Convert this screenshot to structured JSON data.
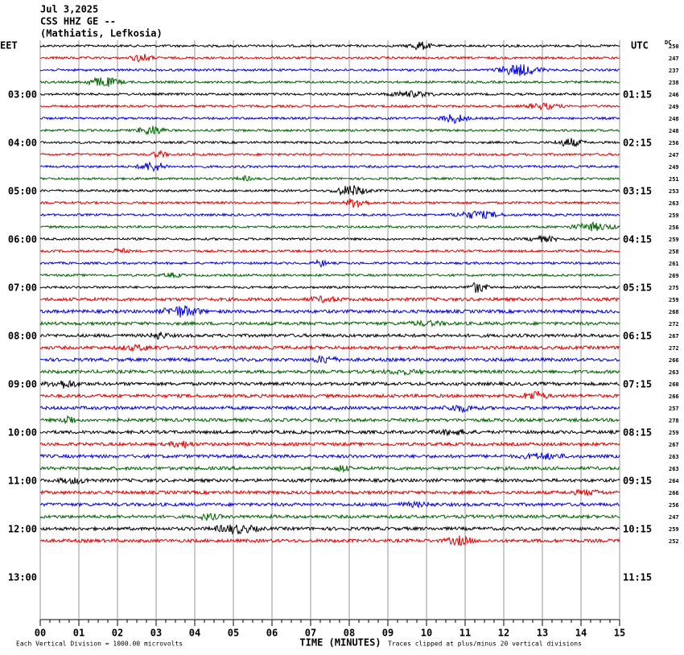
{
  "header": {
    "date": "Jul 3,2025",
    "station": "CSS HHZ GE --",
    "location": "(Mathiatis, Lefkosia)"
  },
  "left_axis": {
    "zone": "EET",
    "labels": [
      "03:00",
      "04:00",
      "05:00",
      "06:00",
      "07:00",
      "08:00",
      "09:00",
      "10:00",
      "11:00",
      "12:00",
      "13:00"
    ]
  },
  "right_axis": {
    "zone": "UTC",
    "labels": [
      "01:15",
      "02:15",
      "03:15",
      "04:15",
      "05:15",
      "06:15",
      "07:15",
      "08:15",
      "09:15",
      "10:15",
      "11:15"
    ]
  },
  "dc": {
    "title": "DC",
    "values": [
      "250",
      "247",
      "237",
      "238",
      "246",
      "249",
      "248",
      "248",
      "256",
      "247",
      "249",
      "251",
      "253",
      "263",
      "259",
      "256",
      "259",
      "258",
      "261",
      "269",
      "275",
      "259",
      "268",
      "272",
      "267",
      "272",
      "266",
      "263",
      "260",
      "266",
      "257",
      "278",
      "259",
      "267",
      "263",
      "263",
      "264",
      "266",
      "256",
      "247",
      "259",
      "252"
    ]
  },
  "x_axis": {
    "title": "TIME (MINUTES)",
    "ticks": [
      "00",
      "01",
      "02",
      "03",
      "04",
      "05",
      "06",
      "07",
      "08",
      "09",
      "10",
      "11",
      "12",
      "13",
      "14",
      "15"
    ]
  },
  "footer": {
    "scale": "Each Vertical Division = 1000.00 microvolts",
    "clip": "Traces clipped at plus/minus 20 vertical divisions"
  }
}
